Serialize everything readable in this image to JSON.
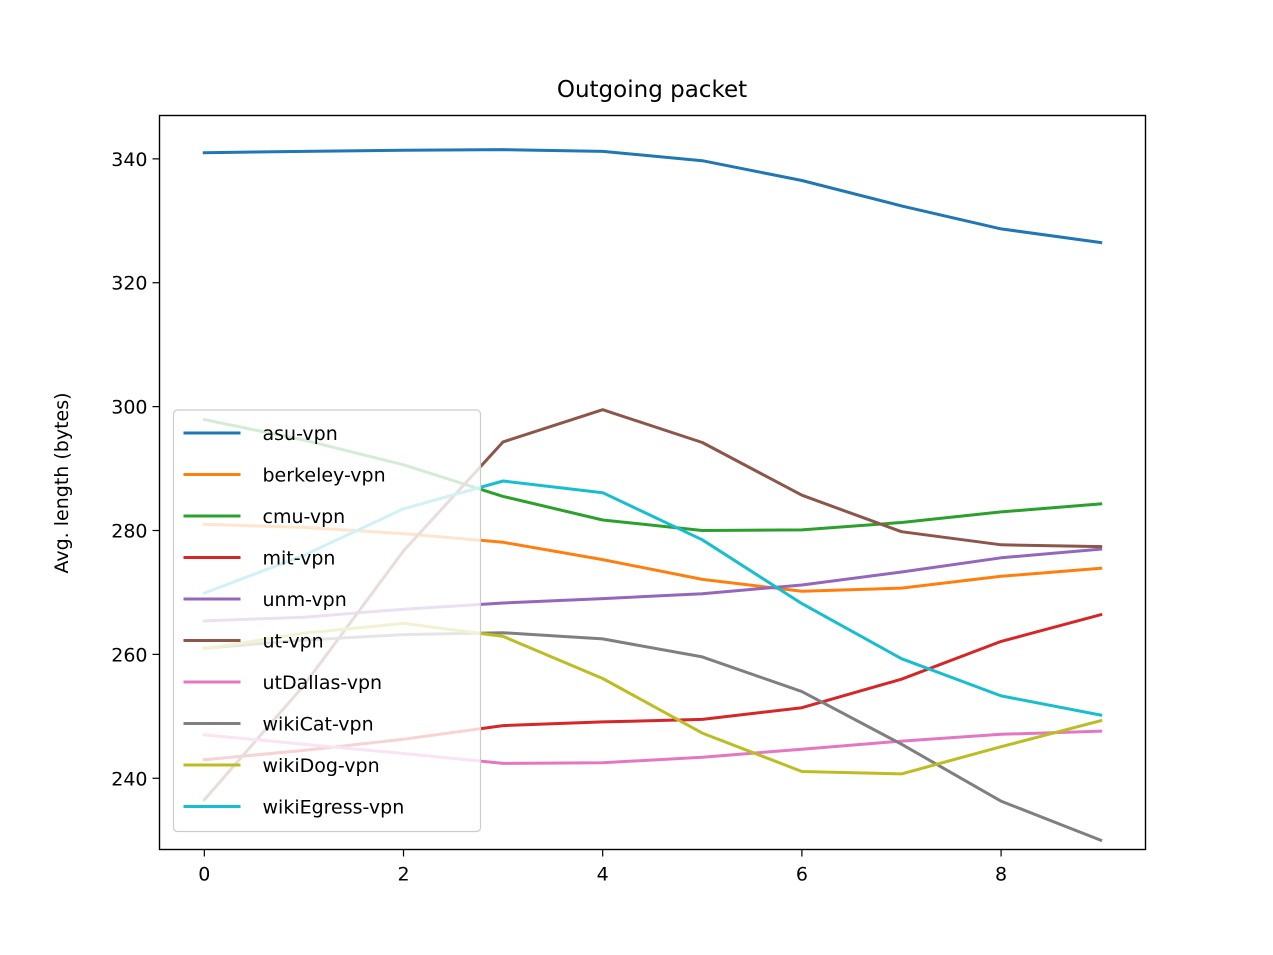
{
  "chart_data": {
    "type": "line",
    "title": "Outgoing packet",
    "xlabel": "",
    "ylabel": "Avg. length (bytes)",
    "xlim": [
      -0.45,
      9.45
    ],
    "ylim": [
      228.5,
      347
    ],
    "xticks": [
      0,
      2,
      4,
      6,
      8
    ],
    "yticks": [
      240,
      260,
      280,
      300,
      320,
      340
    ],
    "legend_position": "lower-left",
    "grid": false,
    "x": [
      0,
      1,
      2,
      3,
      4,
      5,
      6,
      7,
      8,
      9
    ],
    "series": [
      {
        "name": "asu-vpn",
        "color": "#1f77b4",
        "values": [
          341.0,
          341.2,
          341.4,
          341.5,
          341.2,
          339.7,
          336.5,
          332.4,
          328.7,
          326.5
        ]
      },
      {
        "name": "berkeley-vpn",
        "color": "#ff7f0e",
        "values": [
          281.0,
          280.5,
          279.5,
          278.1,
          275.3,
          272.1,
          270.2,
          270.7,
          272.6,
          273.9
        ]
      },
      {
        "name": "cmu-vpn",
        "color": "#2ca02c",
        "values": [
          297.9,
          294.6,
          290.6,
          285.5,
          281.7,
          280.0,
          280.1,
          281.3,
          283.0,
          284.3
        ]
      },
      {
        "name": "mit-vpn",
        "color": "#d62728",
        "values": [
          243.0,
          244.5,
          246.3,
          248.5,
          249.1,
          249.5,
          251.4,
          256.0,
          262.1,
          266.4
        ]
      },
      {
        "name": "unm-vpn",
        "color": "#9467bd",
        "values": [
          265.4,
          266.0,
          267.3,
          268.3,
          269.0,
          269.8,
          271.2,
          273.3,
          275.6,
          277.0
        ]
      },
      {
        "name": "ut-vpn",
        "color": "#8c564b",
        "values": [
          236.5,
          255.0,
          276.7,
          294.3,
          299.5,
          294.2,
          285.7,
          279.8,
          277.7,
          277.4
        ]
      },
      {
        "name": "utDallas-vpn",
        "color": "#e377c2",
        "values": [
          247.0,
          245.5,
          244.0,
          242.4,
          242.5,
          243.4,
          244.7,
          246.0,
          247.1,
          247.6
        ]
      },
      {
        "name": "wikiCat-vpn",
        "color": "#7f7f7f",
        "values": [
          261.0,
          262.3,
          263.2,
          263.5,
          262.5,
          259.6,
          254.0,
          245.5,
          236.3,
          230.0
        ]
      },
      {
        "name": "wikiDog-vpn",
        "color": "#bcbd22",
        "values": [
          260.9,
          263.4,
          265.0,
          262.9,
          256.1,
          247.3,
          241.1,
          240.7,
          245.1,
          249.3
        ]
      },
      {
        "name": "wikiEgress-vpn",
        "color": "#17becf",
        "values": [
          269.9,
          276.0,
          283.5,
          288.0,
          286.1,
          278.5,
          268.2,
          259.3,
          253.3,
          250.2
        ]
      }
    ]
  }
}
